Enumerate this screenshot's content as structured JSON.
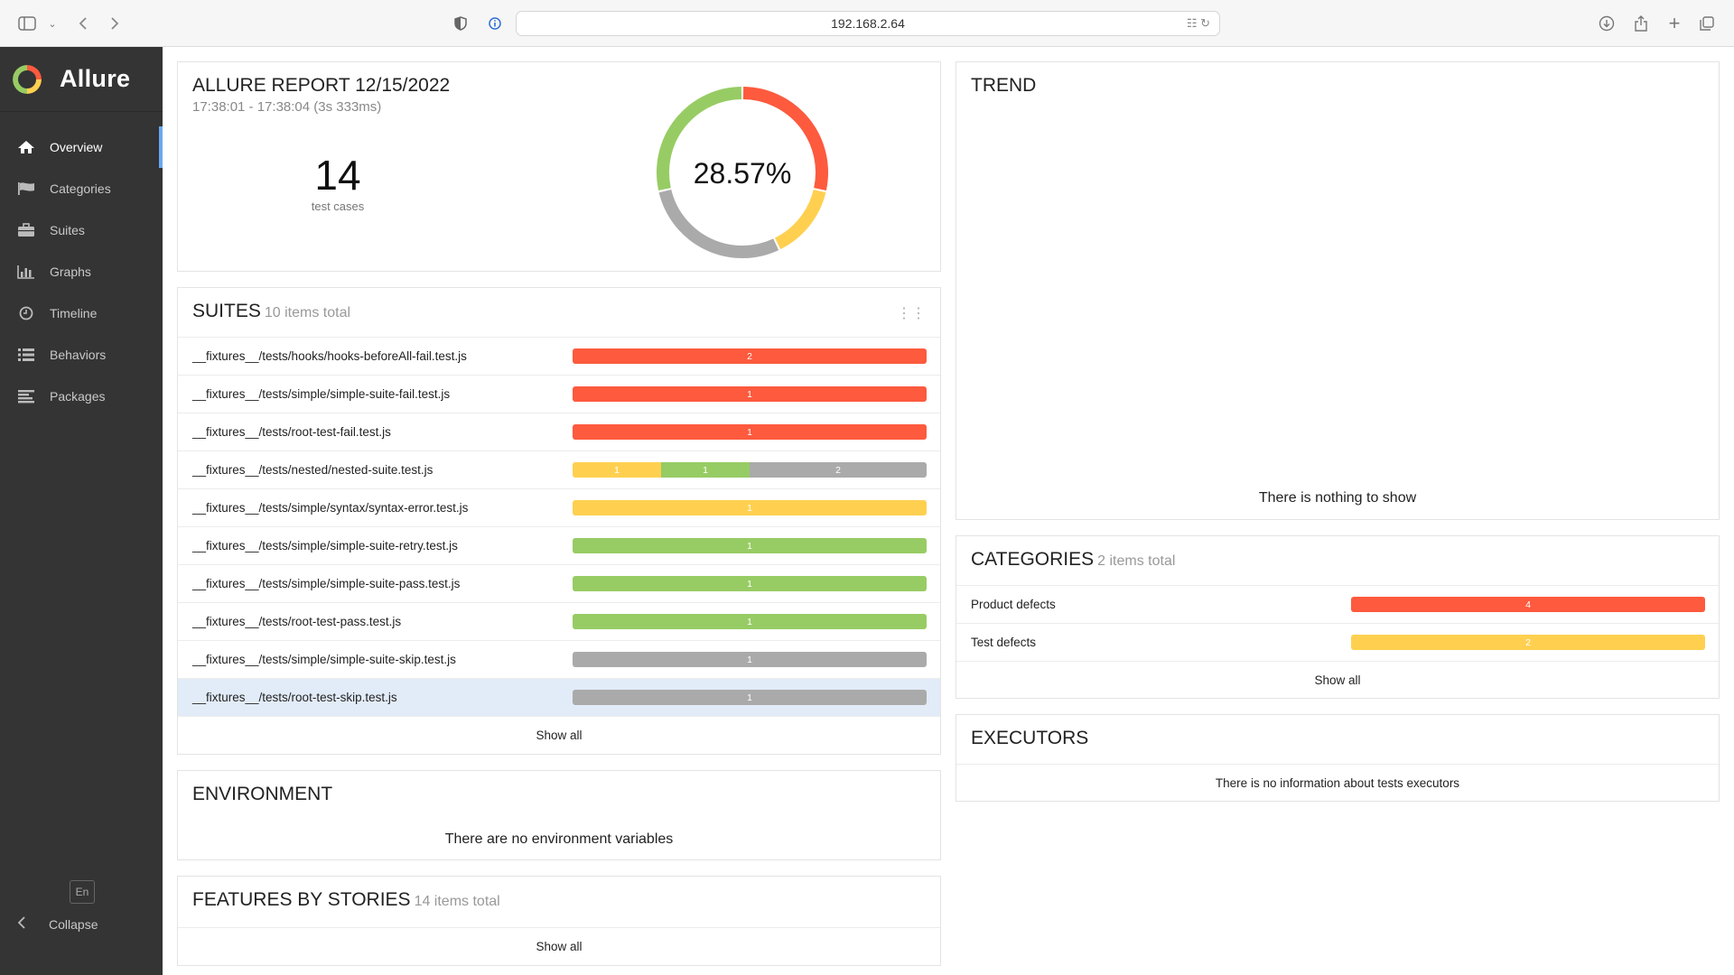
{
  "browser": {
    "url": "192.168.2.64"
  },
  "colors": {
    "failed": "#fd5a3e",
    "broken": "#ffd050",
    "passed": "#97cc64",
    "skipped": "#aaaaaa",
    "accent": "#6aa8f0"
  },
  "sidebar": {
    "brand": "Allure",
    "items": [
      {
        "label": "Overview",
        "icon": "home-icon",
        "active": true
      },
      {
        "label": "Categories",
        "icon": "flag-icon"
      },
      {
        "label": "Suites",
        "icon": "briefcase-icon"
      },
      {
        "label": "Graphs",
        "icon": "bar-chart-icon"
      },
      {
        "label": "Timeline",
        "icon": "clock-icon"
      },
      {
        "label": "Behaviors",
        "icon": "list-icon"
      },
      {
        "label": "Packages",
        "icon": "align-left-icon"
      }
    ],
    "language": "En",
    "collapse": "Collapse"
  },
  "summary": {
    "title": "ALLURE REPORT 12/15/2022",
    "time": "17:38:01 - 17:38:04 (3s 333ms)",
    "count": "14",
    "count_label": "test cases",
    "percent": "28.57%",
    "status_distribution": {
      "failed": 4,
      "broken": 2,
      "skipped": 4,
      "passed": 4
    }
  },
  "suites": {
    "title": "SUITES",
    "count": "10 items total",
    "rows": [
      {
        "name": "__fixtures__/tests/hooks/hooks-beforeAll-fail.test.js",
        "segments": [
          {
            "status": "failed",
            "value": 2
          }
        ]
      },
      {
        "name": "__fixtures__/tests/simple/simple-suite-fail.test.js",
        "segments": [
          {
            "status": "failed",
            "value": 1
          }
        ]
      },
      {
        "name": "__fixtures__/tests/root-test-fail.test.js",
        "segments": [
          {
            "status": "failed",
            "value": 1
          }
        ]
      },
      {
        "name": "__fixtures__/tests/nested/nested-suite.test.js",
        "segments": [
          {
            "status": "broken",
            "value": 1
          },
          {
            "status": "passed",
            "value": 1
          },
          {
            "status": "skipped",
            "value": 2
          }
        ]
      },
      {
        "name": "__fixtures__/tests/simple/syntax/syntax-error.test.js",
        "segments": [
          {
            "status": "broken",
            "value": 1
          }
        ]
      },
      {
        "name": "__fixtures__/tests/simple/simple-suite-retry.test.js",
        "segments": [
          {
            "status": "passed",
            "value": 1
          }
        ]
      },
      {
        "name": "__fixtures__/tests/simple/simple-suite-pass.test.js",
        "segments": [
          {
            "status": "passed",
            "value": 1
          }
        ]
      },
      {
        "name": "__fixtures__/tests/root-test-pass.test.js",
        "segments": [
          {
            "status": "passed",
            "value": 1
          }
        ]
      },
      {
        "name": "__fixtures__/tests/simple/simple-suite-skip.test.js",
        "segments": [
          {
            "status": "skipped",
            "value": 1
          }
        ]
      },
      {
        "name": "__fixtures__/tests/root-test-skip.test.js",
        "segments": [
          {
            "status": "skipped",
            "value": 1
          }
        ],
        "highlight": true
      }
    ],
    "show_all": "Show all"
  },
  "environment": {
    "title": "ENVIRONMENT",
    "empty": "There are no environment variables"
  },
  "features": {
    "title": "FEATURES BY STORIES",
    "count": "14 items total",
    "show_all": "Show all"
  },
  "trend": {
    "title": "TREND",
    "empty": "There is nothing to show"
  },
  "categories": {
    "title": "CATEGORIES",
    "count": "2 items total",
    "rows": [
      {
        "name": "Product defects",
        "segments": [
          {
            "status": "failed",
            "value": 4
          }
        ]
      },
      {
        "name": "Test defects",
        "segments": [
          {
            "status": "broken",
            "value": 2
          }
        ]
      }
    ],
    "show_all": "Show all"
  },
  "executors": {
    "title": "EXECUTORS",
    "empty": "There is no information about tests executors"
  }
}
